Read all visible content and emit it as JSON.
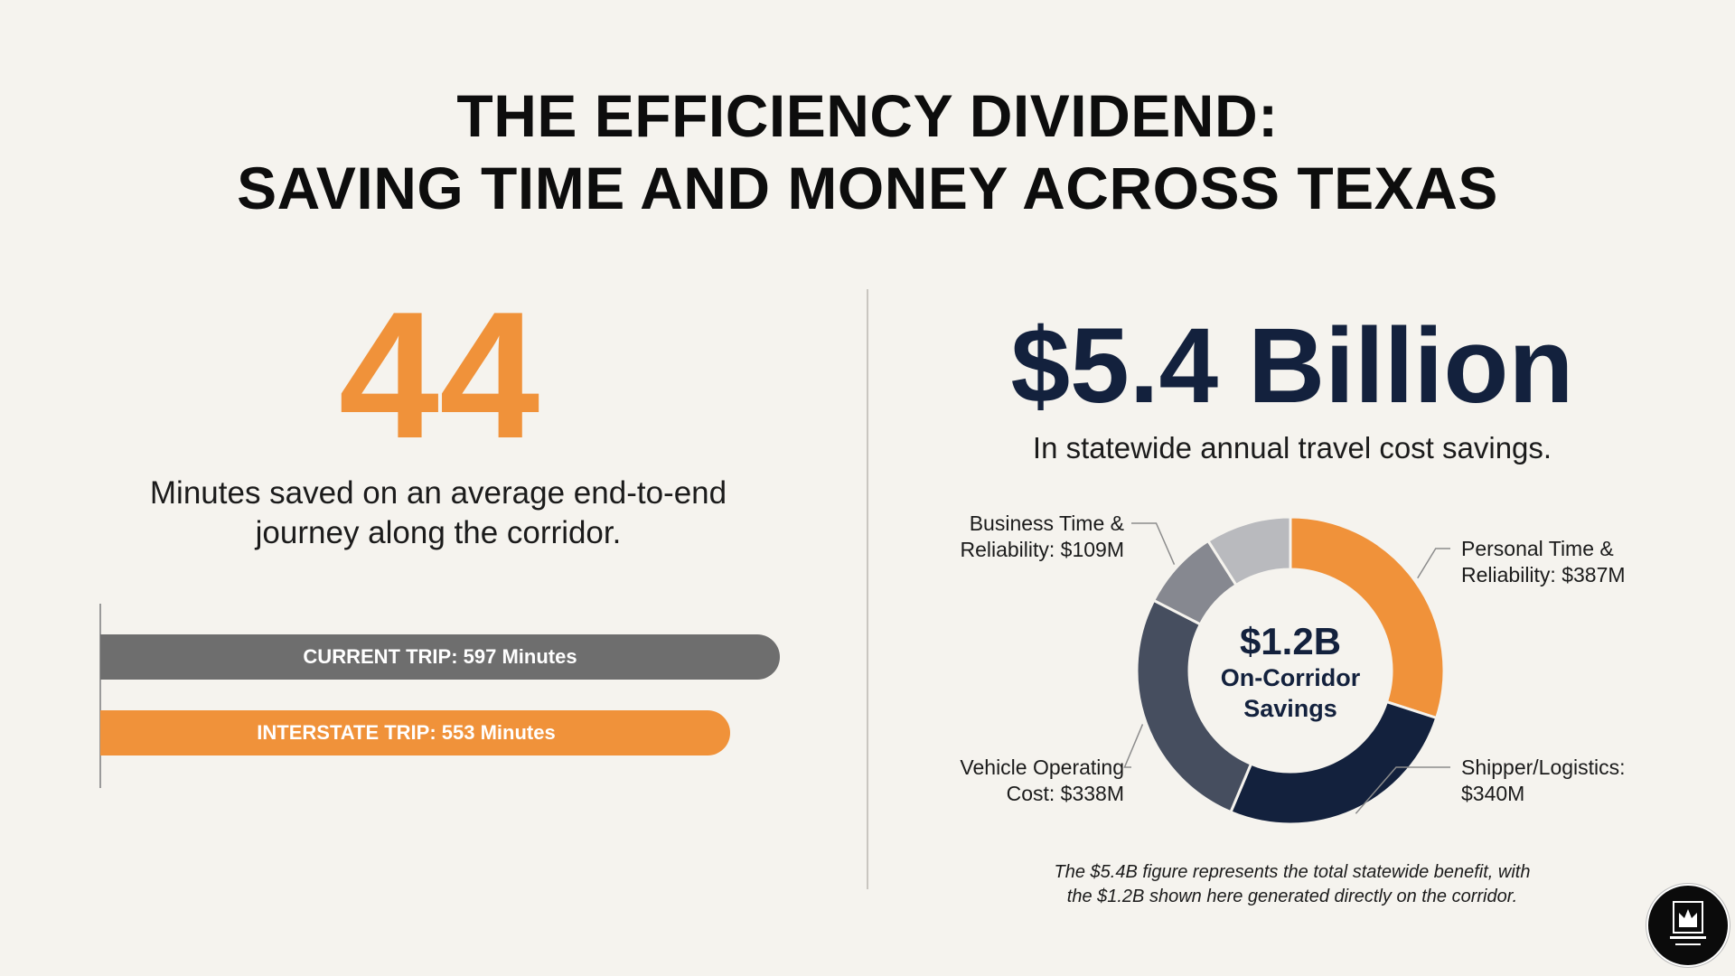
{
  "title": {
    "line1": "THE EFFICIENCY DIVIDEND:",
    "line2": "SAVING TIME AND MONEY ACROSS TEXAS"
  },
  "left": {
    "big_number": "44",
    "description_line1": "Minutes saved on an average end-to-end",
    "description_line2": "journey along the corridor."
  },
  "right": {
    "big_money": "$5.4 Billion",
    "subtitle": "In statewide annual travel cost savings.",
    "donut_center_value": "$1.2B",
    "donut_center_label_line1": "On-Corridor",
    "donut_center_label_line2": "Savings",
    "footnote_line1": "The $5.4B figure represents the total statewide benefit, with",
    "footnote_line2": "the $1.2B shown here generated directly on the corridor."
  },
  "colors": {
    "orange": "#f0923a",
    "navy": "#13213d",
    "gray_bar": "#6e6e6e",
    "slate": "#464e5f",
    "mid_gray": "#868890",
    "light_gray": "#b9babe"
  },
  "chart_data": [
    {
      "type": "bar",
      "orientation": "horizontal",
      "categories": [
        "CURRENT TRIP",
        "INTERSTATE TRIP"
      ],
      "labels": [
        "CURRENT TRIP: 597 Minutes",
        "INTERSTATE TRIP: 553 Minutes"
      ],
      "values": [
        597,
        553
      ],
      "unit": "Minutes",
      "colors": [
        "#6e6e6e",
        "#f0923a"
      ]
    },
    {
      "type": "pie",
      "variant": "donut",
      "labels": [
        {
          "line1": "Personal Time &",
          "line2": "Reliability: $387M"
        },
        {
          "line1": "Shipper/Logistics:",
          "line2": "$340M"
        },
        {
          "line1": "Vehicle Operating",
          "line2": "Cost: $338M"
        },
        {
          "line1": "Business Time &",
          "line2": "Reliability: $109M"
        }
      ],
      "values": [
        387,
        340,
        338,
        109
      ],
      "colors": [
        "#f0923a",
        "#13213d",
        "#464e5f",
        "#868890"
      ],
      "remainder_color": "#b9babe"
    }
  ]
}
